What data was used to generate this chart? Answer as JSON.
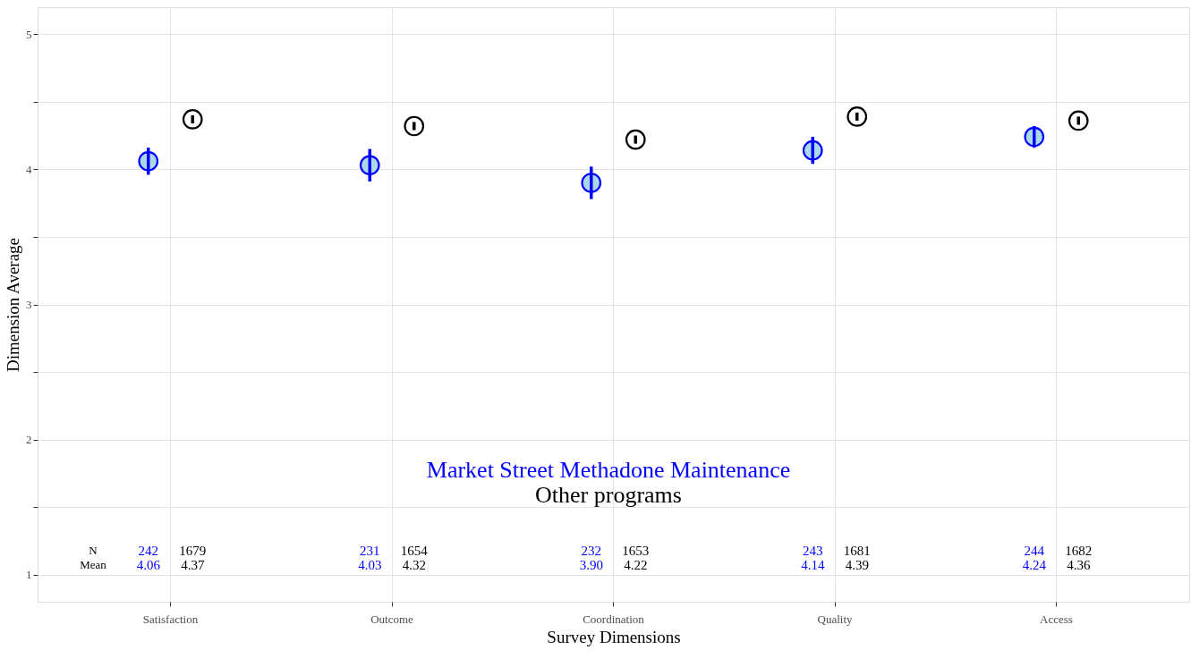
{
  "chart_data": {
    "type": "scatter",
    "xlabel": "Survey Dimensions",
    "ylabel": "Dimension Average",
    "categories": [
      "Satisfaction",
      "Outcome",
      "Coordination",
      "Quality",
      "Access"
    ],
    "series": [
      {
        "name": "Market Street Methadone Maintenance",
        "color": "#0000ff",
        "values": [
          4.06,
          4.03,
          3.9,
          4.14,
          4.24
        ],
        "errors": [
          0.1,
          0.12,
          0.12,
          0.1,
          0.08
        ]
      },
      {
        "name": "Other programs",
        "color": "#000000",
        "values": [
          4.37,
          4.32,
          4.22,
          4.39,
          4.36
        ],
        "errors": [
          0.03,
          0.03,
          0.03,
          0.03,
          0.03
        ]
      }
    ],
    "ylim": [
      0.8,
      5.2
    ],
    "yticks": [
      1,
      {
        "value": 1.5,
        "label": null
      },
      2,
      {
        "value": 2.5,
        "label": null
      },
      3,
      {
        "value": 3.5,
        "label": null
      },
      4,
      {
        "value": 4.5,
        "label": null
      },
      5
    ],
    "grid": true,
    "legend": "bottom",
    "marker": "circle",
    "annotations": [
      "N",
      "Mean",
      "242",
      "4.06",
      "1679",
      "4.37",
      "231",
      "4.03",
      "1654",
      "4.32",
      "232",
      "3.90",
      "1653",
      "4.22",
      "243",
      "4.14",
      "1681",
      "4.39",
      "244",
      "4.24",
      "1682",
      "4.36"
    ]
  }
}
